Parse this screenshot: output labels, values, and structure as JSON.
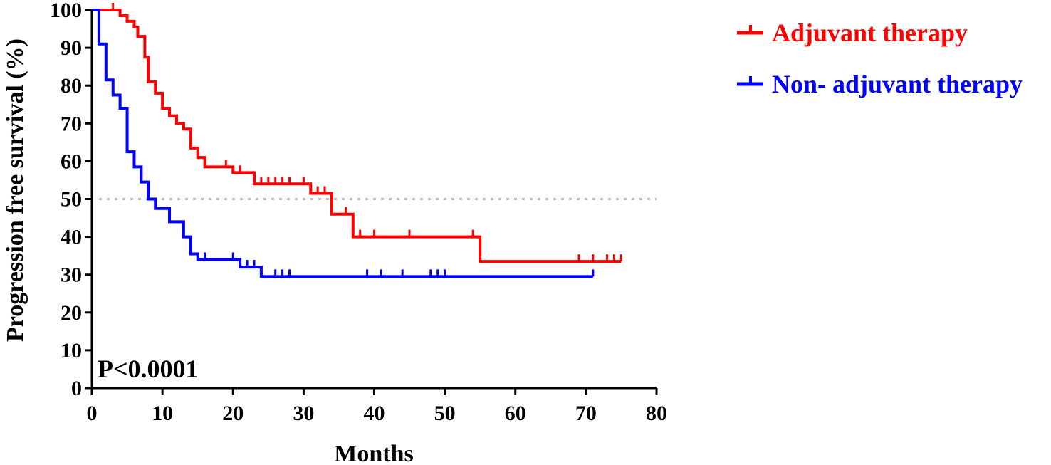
{
  "chart_data": {
    "type": "line",
    "xlabel": "Months",
    "ylabel": "Progression free survival (%)",
    "xlim": [
      0,
      80
    ],
    "ylim": [
      0,
      100
    ],
    "x_ticks": [
      "0",
      "10",
      "20",
      "30",
      "40",
      "50",
      "60",
      "70",
      "80"
    ],
    "y_ticks": [
      "0",
      "10",
      "20",
      "30",
      "40",
      "50",
      "60",
      "70",
      "80",
      "90",
      "100"
    ],
    "reference_line_y": 50,
    "legend_position": "top-right",
    "annotation": "P<0.0001",
    "series": [
      {
        "name": "Adjuvant therapy",
        "color": "#ff0000",
        "steps": [
          [
            0,
            100
          ],
          [
            4,
            98.5
          ],
          [
            5,
            97
          ],
          [
            6,
            95.5
          ],
          [
            6.5,
            93
          ],
          [
            7.5,
            87.5
          ],
          [
            8,
            81
          ],
          [
            9,
            78
          ],
          [
            10,
            74
          ],
          [
            11,
            72
          ],
          [
            12,
            70
          ],
          [
            13,
            68.5
          ],
          [
            14,
            63.5
          ],
          [
            15,
            61
          ],
          [
            16,
            58.5
          ],
          [
            20,
            57
          ],
          [
            23,
            54
          ],
          [
            31,
            51.5
          ],
          [
            34,
            46
          ],
          [
            36,
            46
          ],
          [
            37,
            40
          ],
          [
            55,
            33.5
          ],
          [
            75,
            33.5
          ]
        ],
        "censor": [
          3,
          19,
          21,
          24,
          25,
          26,
          27,
          28,
          30,
          32,
          33,
          36,
          38,
          40,
          45,
          54,
          69,
          71,
          73,
          74,
          75
        ],
        "end_x": 75
      },
      {
        "name": "Non- adjuvant therapy",
        "color": "#0000ff",
        "steps": [
          [
            0,
            100
          ],
          [
            1,
            91
          ],
          [
            2,
            81.5
          ],
          [
            3,
            77.5
          ],
          [
            4,
            74
          ],
          [
            5,
            62.5
          ],
          [
            6,
            58.5
          ],
          [
            7,
            54.5
          ],
          [
            8,
            50
          ],
          [
            9,
            47.5
          ],
          [
            11,
            44
          ],
          [
            13,
            40
          ],
          [
            14,
            35.5
          ],
          [
            15,
            34
          ],
          [
            21,
            32
          ],
          [
            24,
            29.5
          ],
          [
            71,
            29.5
          ]
        ],
        "censor": [
          16,
          20,
          22,
          23,
          26,
          27,
          28,
          39,
          41,
          44,
          48,
          49,
          50,
          71
        ],
        "end_x": 71
      }
    ]
  }
}
